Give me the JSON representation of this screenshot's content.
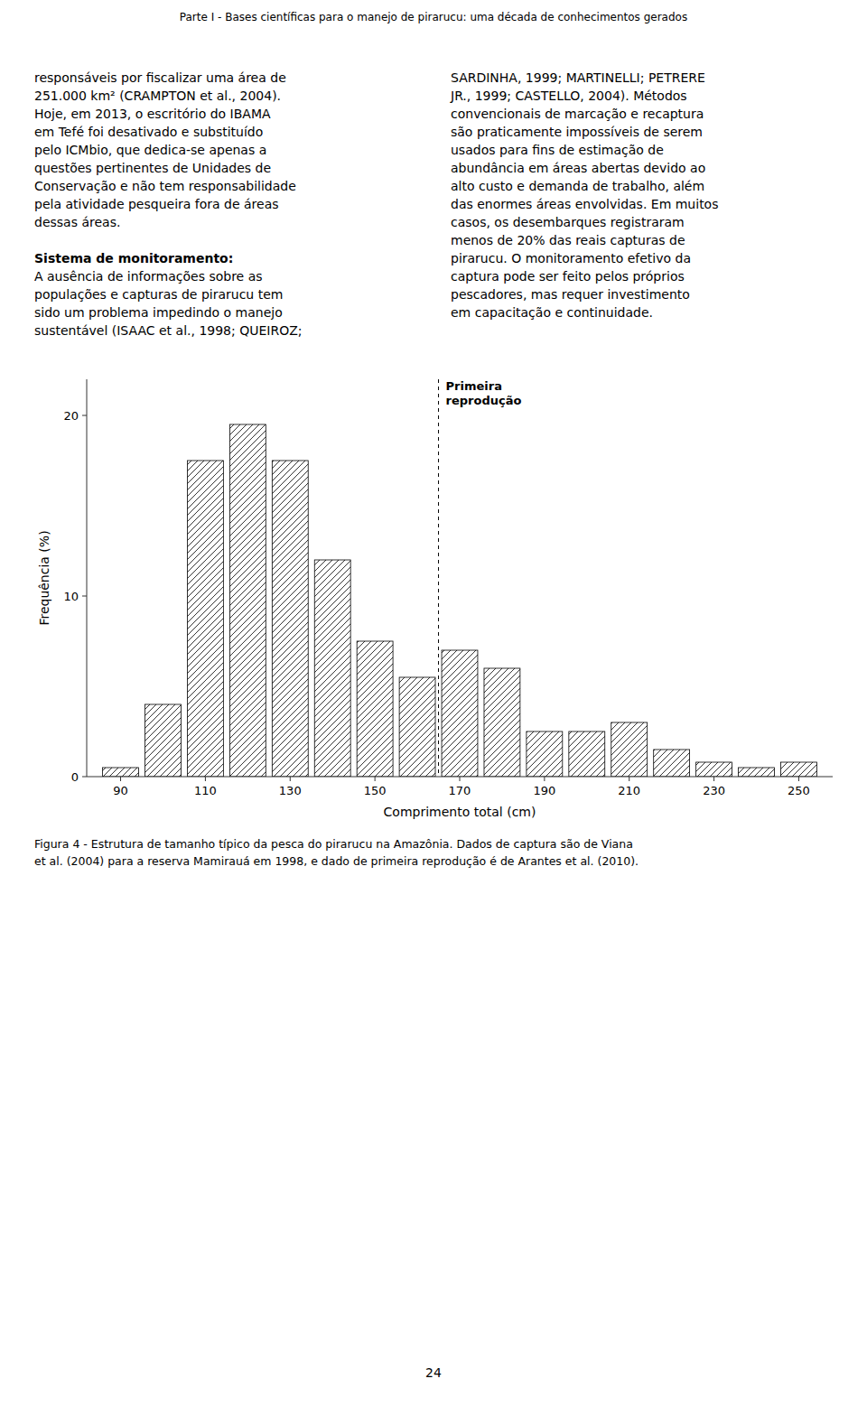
{
  "page": {
    "header": "Parte I - Bases científicas para o manejo de pirarucu: uma década de conhecimentos gerados",
    "left_column": [
      {
        "lines": [
          "responsáveis por fiscalizar uma área de",
          "251.000 km² (CRAMPTON et al., 2004).",
          "Hoje, em 2013, o escritório do IBAMA",
          "em Tefé foi desativado e substituído",
          "pelo ICMbio, que dedica-se apenas a",
          "questões pertinentes de Unidades de",
          "Conservação e não tem responsabilidade",
          "pela atividade pesqueira fora de áreas",
          "dessas áreas."
        ]
      },
      {
        "heading": "Sistema de monitoramento:",
        "lines": [
          "A ausência de informações sobre as",
          "populações e capturas de pirarucu tem",
          "sido um problema impedindo o manejo",
          "sustentável (ISAAC et al., 1998; QUEIROZ;"
        ]
      }
    ],
    "right_column": [
      {
        "lines": [
          "SARDINHA, 1999; MARTINELLI; PETRERE",
          "JR., 1999; CASTELLO, 2004). Métodos",
          "convencionais de marcação e recaptura",
          "são praticamente impossíveis de serem",
          "usados para fins de estimação de",
          "abundância em áreas abertas devido ao",
          "alto custo e demanda de trabalho, além",
          "das enormes áreas envolvidas. Em muitos",
          "casos, os desembarques registraram",
          "menos de 20% das reais capturas de",
          "pirarucu. O monitoramento efetivo da",
          "captura pode ser feito pelos próprios",
          "pescadores, mas requer investimento",
          "em capacitação e continuidade."
        ]
      }
    ],
    "caption": [
      "Figura 4 - Estrutura de tamanho típico da pesca do pirarucu na Amazônia. Dados de captura são de Viana",
      "et al. (2004) para a reserva Mamirauá em 1998, e dado de primeira reprodução é de Arantes et al. (2010)."
    ],
    "page_number": "24"
  },
  "chart_data": {
    "type": "bar",
    "x": [
      90,
      100,
      110,
      120,
      130,
      140,
      150,
      160,
      170,
      180,
      190,
      200,
      210,
      220,
      230,
      240,
      250
    ],
    "values": [
      0.5,
      4.0,
      17.5,
      19.5,
      17.5,
      12.0,
      7.5,
      5.5,
      7.0,
      6.0,
      2.5,
      2.5,
      3.0,
      1.5,
      0.8,
      0.5,
      0.8
    ],
    "color": "white",
    "xlabel": "Comprimento total (cm)",
    "ylabel": "Frequência (%)",
    "xlim": [
      82,
      258
    ],
    "ylim": [
      0,
      22
    ],
    "xticks": [
      90,
      110,
      130,
      150,
      170,
      190,
      210,
      230,
      250
    ],
    "yticks": [
      0,
      10,
      20
    ],
    "grid": false,
    "annotations": [
      {
        "x": 165,
        "text": "Primeira\nreprodução"
      }
    ]
  }
}
